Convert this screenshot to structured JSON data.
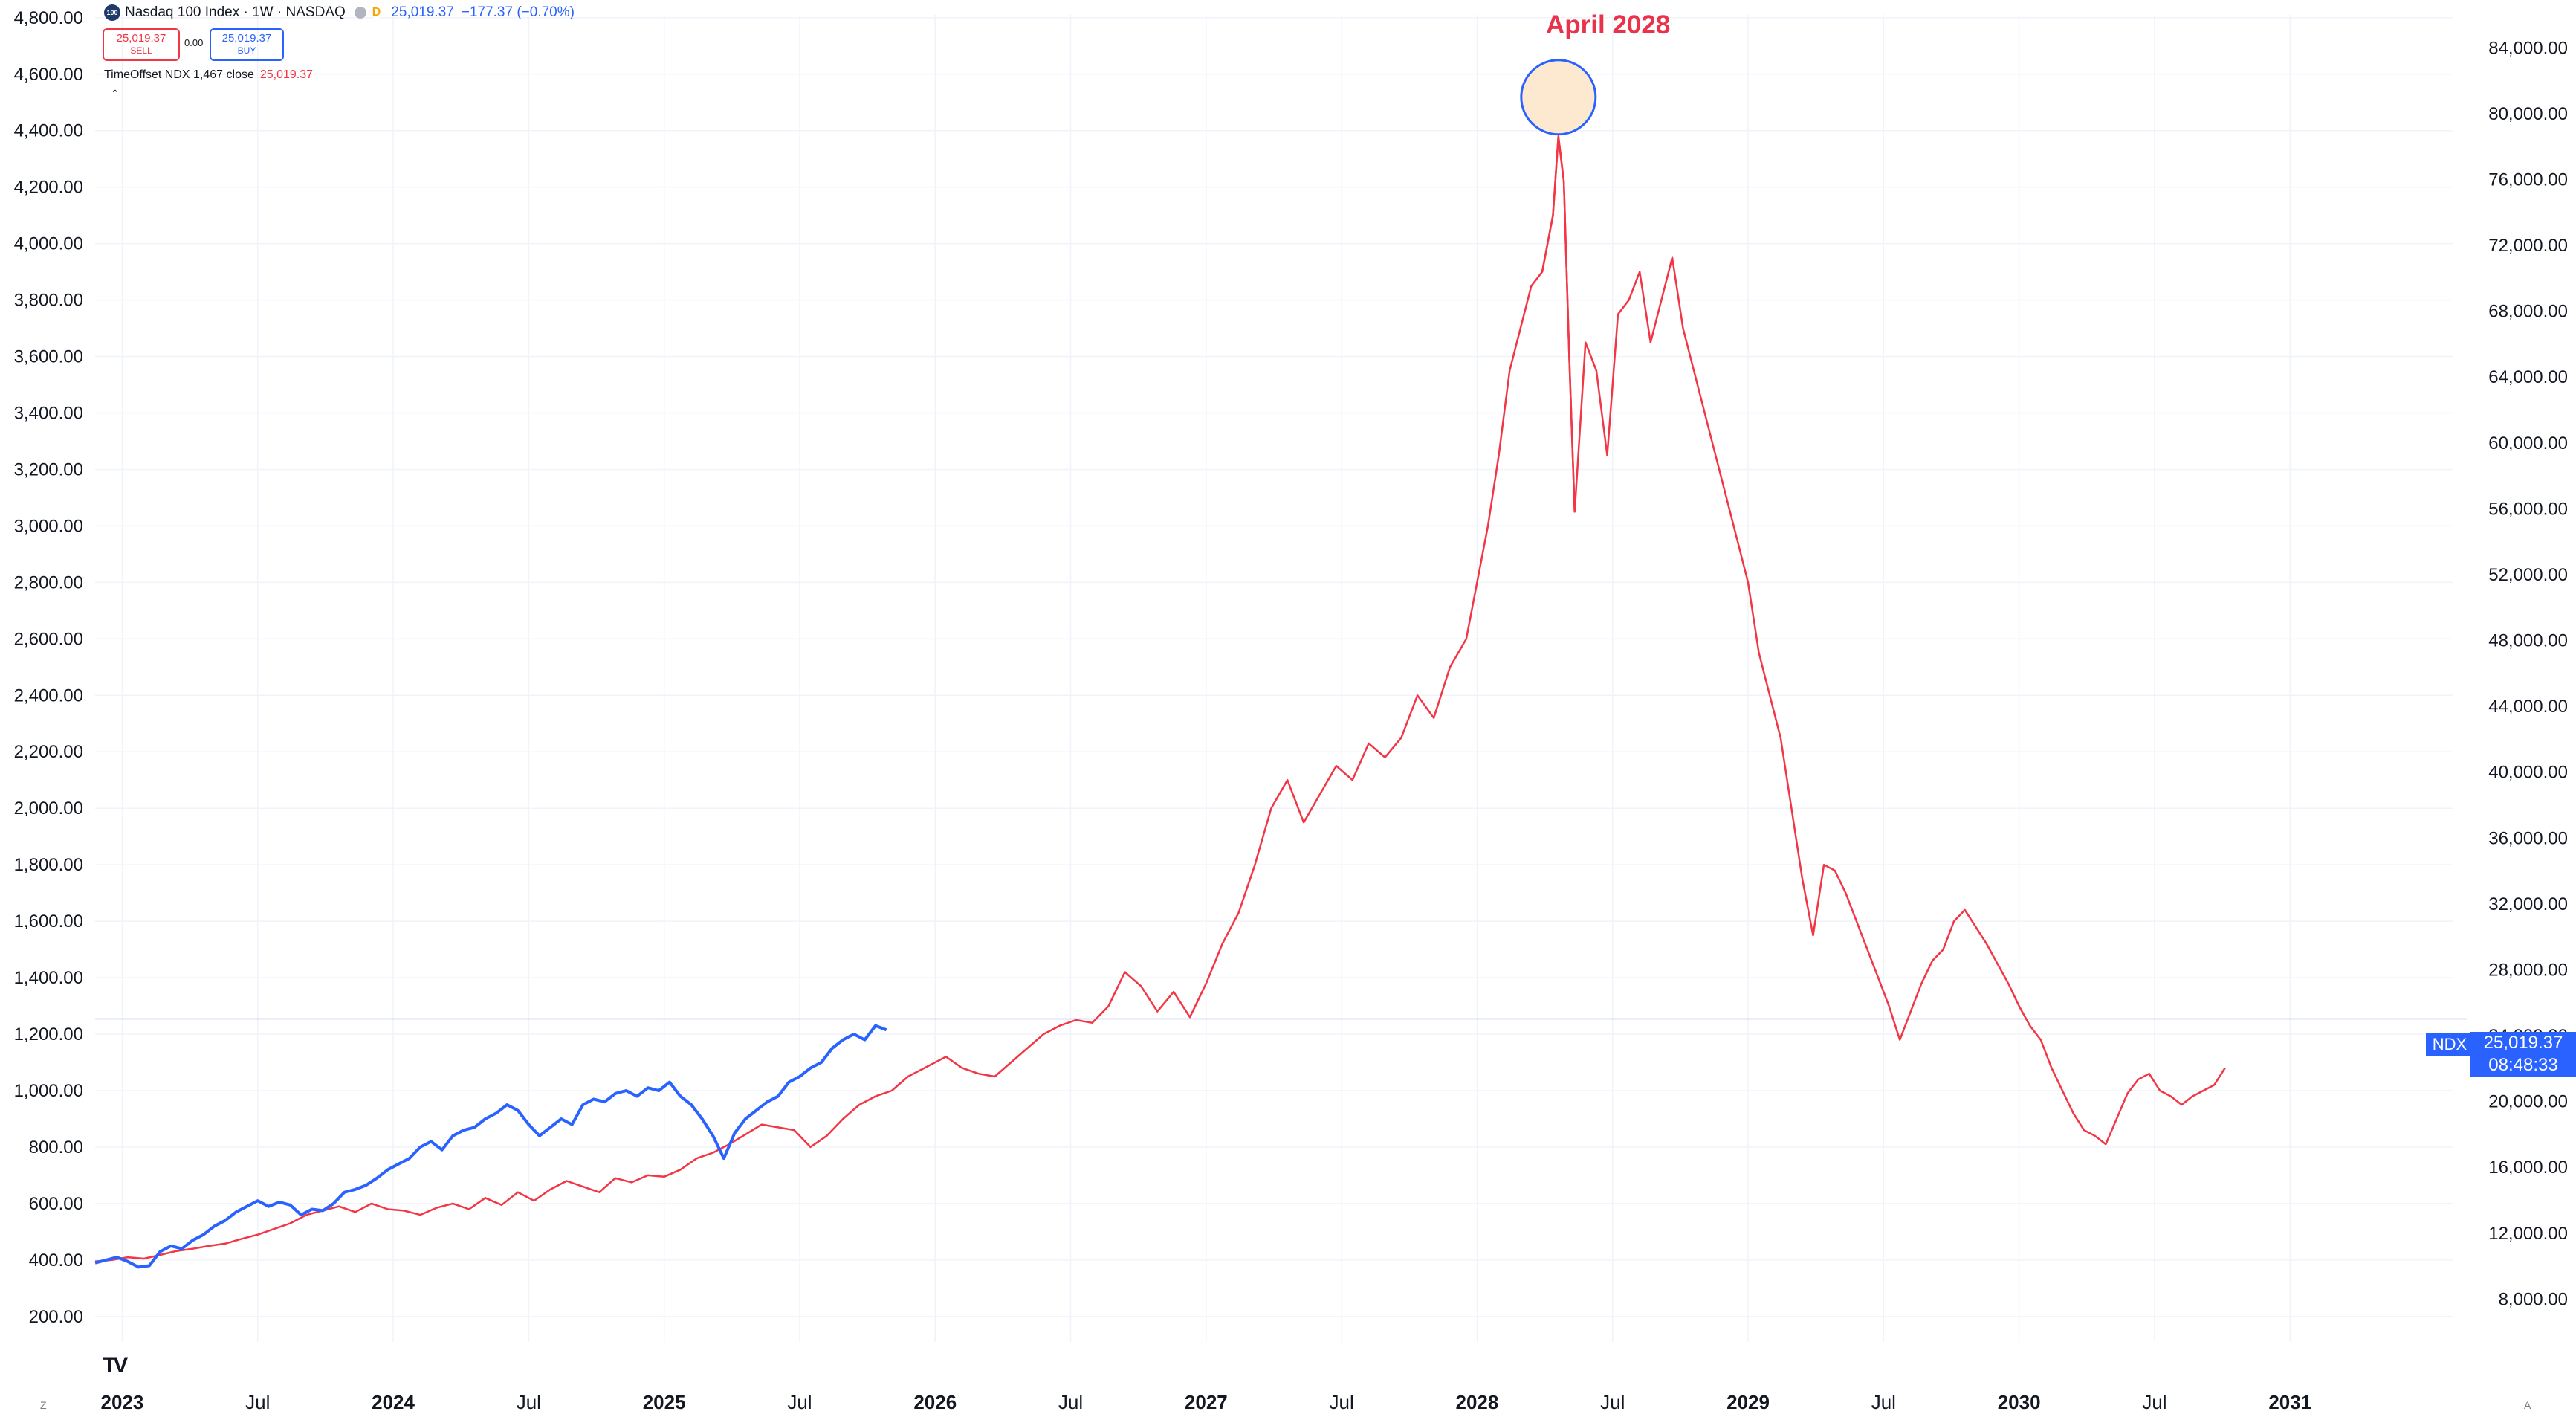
{
  "header": {
    "symbol_title": "Nasdaq 100 Index · 1W · NASDAQ",
    "logo_text": "100",
    "market_state": "D",
    "last_price": "25,019.37",
    "change": "−177.37 (−0.70%)",
    "sell_price": "25,019.37",
    "sell_label": "SELL",
    "spread": "0.00",
    "buy_price": "25,019.37",
    "buy_label": "BUY",
    "study_label": "TimeOffset NDX 1,467 close",
    "study_value": "25,019.37",
    "collapse_glyph": "⌃"
  },
  "annotation": {
    "text": "April 2028"
  },
  "price_tag": {
    "symbol": "NDX",
    "value": "25,019.37",
    "countdown": "08:48:33"
  },
  "corner_labels": {
    "left": "Z",
    "right": "A"
  },
  "tv_logo": "TV",
  "colors": {
    "blue_series": "#2962ff",
    "red_series": "#f23645",
    "annotation": "#e8334a",
    "highlight_fill": "#fde2c4",
    "price_line": "#b2bdf5"
  },
  "chart_data": {
    "type": "line",
    "left_axis": {
      "ticks": [
        "4,800.00",
        "4,600.00",
        "4,400.00",
        "4,200.00",
        "4,000.00",
        "3,800.00",
        "3,600.00",
        "3,400.00",
        "3,200.00",
        "3,000.00",
        "2,800.00",
        "2,600.00",
        "2,400.00",
        "2,200.00",
        "2,000.00",
        "1,800.00",
        "1,600.00",
        "1,400.00",
        "1,200.00",
        "1,000.00",
        "800.00",
        "600.00",
        "400.00",
        "200.00"
      ],
      "tick_values": [
        4800,
        4600,
        4400,
        4200,
        4000,
        3800,
        3600,
        3400,
        3200,
        3000,
        2800,
        2600,
        2400,
        2200,
        2000,
        1800,
        1600,
        1400,
        1200,
        1000,
        800,
        600,
        400,
        200
      ],
      "range": [
        110,
        4810
      ]
    },
    "right_axis": {
      "ticks": [
        "84,000.00",
        "80,000.00",
        "76,000.00",
        "72,000.00",
        "68,000.00",
        "64,000.00",
        "60,000.00",
        "56,000.00",
        "52,000.00",
        "48,000.00",
        "44,000.00",
        "40,000.00",
        "36,000.00",
        "32,000.00",
        "28,000.00",
        "24,000.00",
        "20,000.00",
        "16,000.00",
        "12,000.00",
        "8,000.00"
      ],
      "tick_values": [
        84000,
        80000,
        76000,
        72000,
        68000,
        64000,
        60000,
        56000,
        52000,
        48000,
        44000,
        40000,
        36000,
        32000,
        28000,
        24000,
        20000,
        16000,
        12000,
        8000
      ],
      "range": [
        5400,
        86000
      ]
    },
    "x_axis": {
      "ticks": [
        {
          "label": "2023",
          "t": 2023.0,
          "year": true
        },
        {
          "label": "Jul",
          "t": 2023.5,
          "year": false
        },
        {
          "label": "2024",
          "t": 2024.0,
          "year": true
        },
        {
          "label": "Jul",
          "t": 2024.5,
          "year": false
        },
        {
          "label": "2025",
          "t": 2025.0,
          "year": true
        },
        {
          "label": "Jul",
          "t": 2025.5,
          "year": false
        },
        {
          "label": "2026",
          "t": 2026.0,
          "year": true
        },
        {
          "label": "Jul",
          "t": 2026.5,
          "year": false
        },
        {
          "label": "2027",
          "t": 2027.0,
          "year": true
        },
        {
          "label": "Jul",
          "t": 2027.5,
          "year": false
        },
        {
          "label": "2028",
          "t": 2028.0,
          "year": true
        },
        {
          "label": "Jul",
          "t": 2028.5,
          "year": false
        },
        {
          "label": "2029",
          "t": 2029.0,
          "year": true
        },
        {
          "label": "Jul",
          "t": 2029.5,
          "year": false
        },
        {
          "label": "2030",
          "t": 2030.0,
          "year": true
        },
        {
          "label": "Jul",
          "t": 2030.5,
          "year": false
        },
        {
          "label": "2031",
          "t": 2031.0,
          "year": true
        }
      ],
      "range": [
        2022.9,
        2031.6
      ]
    },
    "current_price_right_axis": 25019.37,
    "highlight_peak": {
      "t": 2028.3,
      "value_right_axis": 81000
    },
    "series": [
      {
        "axis": "left",
        "color": "#f23645",
        "points": [
          [
            2022.9,
            395
          ],
          [
            2022.96,
            400
          ],
          [
            2023.02,
            410
          ],
          [
            2023.08,
            405
          ],
          [
            2023.14,
            418
          ],
          [
            2023.2,
            432
          ],
          [
            2023.26,
            440
          ],
          [
            2023.32,
            450
          ],
          [
            2023.38,
            458
          ],
          [
            2023.44,
            475
          ],
          [
            2023.5,
            490
          ],
          [
            2023.56,
            510
          ],
          [
            2023.62,
            530
          ],
          [
            2023.68,
            560
          ],
          [
            2023.74,
            575
          ],
          [
            2023.8,
            590
          ],
          [
            2023.86,
            570
          ],
          [
            2023.92,
            600
          ],
          [
            2023.98,
            580
          ],
          [
            2024.04,
            575
          ],
          [
            2024.1,
            560
          ],
          [
            2024.16,
            585
          ],
          [
            2024.22,
            600
          ],
          [
            2024.28,
            580
          ],
          [
            2024.34,
            620
          ],
          [
            2024.4,
            595
          ],
          [
            2024.46,
            640
          ],
          [
            2024.52,
            610
          ],
          [
            2024.58,
            650
          ],
          [
            2024.64,
            680
          ],
          [
            2024.7,
            660
          ],
          [
            2024.76,
            640
          ],
          [
            2024.82,
            690
          ],
          [
            2024.88,
            675
          ],
          [
            2024.94,
            700
          ],
          [
            2025.0,
            695
          ],
          [
            2025.06,
            720
          ],
          [
            2025.12,
            760
          ],
          [
            2025.18,
            780
          ],
          [
            2025.24,
            810
          ],
          [
            2025.3,
            845
          ],
          [
            2025.36,
            880
          ],
          [
            2025.42,
            870
          ],
          [
            2025.48,
            860
          ],
          [
            2025.54,
            800
          ],
          [
            2025.6,
            840
          ],
          [
            2025.66,
            900
          ],
          [
            2025.72,
            950
          ],
          [
            2025.78,
            980
          ],
          [
            2025.84,
            1000
          ],
          [
            2025.9,
            1050
          ],
          [
            2025.96,
            1080
          ],
          [
            2026.0,
            1100
          ],
          [
            2026.04,
            1120
          ],
          [
            2026.1,
            1080
          ],
          [
            2026.16,
            1060
          ],
          [
            2026.22,
            1050
          ],
          [
            2026.28,
            1100
          ],
          [
            2026.34,
            1150
          ],
          [
            2026.4,
            1200
          ],
          [
            2026.46,
            1230
          ],
          [
            2026.52,
            1250
          ],
          [
            2026.58,
            1240
          ],
          [
            2026.64,
            1300
          ],
          [
            2026.7,
            1420
          ],
          [
            2026.76,
            1370
          ],
          [
            2026.82,
            1280
          ],
          [
            2026.88,
            1350
          ],
          [
            2026.94,
            1260
          ],
          [
            2027.0,
            1380
          ],
          [
            2027.06,
            1520
          ],
          [
            2027.12,
            1630
          ],
          [
            2027.18,
            1800
          ],
          [
            2027.24,
            2000
          ],
          [
            2027.3,
            2100
          ],
          [
            2027.36,
            1950
          ],
          [
            2027.42,
            2050
          ],
          [
            2027.48,
            2150
          ],
          [
            2027.54,
            2100
          ],
          [
            2027.6,
            2230
          ],
          [
            2027.66,
            2180
          ],
          [
            2027.72,
            2250
          ],
          [
            2027.78,
            2400
          ],
          [
            2027.84,
            2320
          ],
          [
            2027.9,
            2500
          ],
          [
            2027.96,
            2600
          ],
          [
            2028.0,
            2800
          ],
          [
            2028.04,
            3000
          ],
          [
            2028.08,
            3250
          ],
          [
            2028.12,
            3550
          ],
          [
            2028.16,
            3700
          ],
          [
            2028.2,
            3850
          ],
          [
            2028.24,
            3900
          ],
          [
            2028.28,
            4100
          ],
          [
            2028.3,
            4380
          ],
          [
            2028.32,
            4220
          ],
          [
            2028.34,
            3600
          ],
          [
            2028.36,
            3050
          ],
          [
            2028.4,
            3650
          ],
          [
            2028.44,
            3550
          ],
          [
            2028.48,
            3250
          ],
          [
            2028.52,
            3750
          ],
          [
            2028.56,
            3800
          ],
          [
            2028.6,
            3900
          ],
          [
            2028.64,
            3650
          ],
          [
            2028.68,
            3800
          ],
          [
            2028.72,
            3950
          ],
          [
            2028.76,
            3700
          ],
          [
            2028.8,
            3550
          ],
          [
            2028.84,
            3400
          ],
          [
            2028.88,
            3250
          ],
          [
            2028.92,
            3100
          ],
          [
            2028.96,
            2950
          ],
          [
            2029.0,
            2800
          ],
          [
            2029.04,
            2550
          ],
          [
            2029.08,
            2400
          ],
          [
            2029.12,
            2250
          ],
          [
            2029.16,
            2000
          ],
          [
            2029.2,
            1750
          ],
          [
            2029.24,
            1550
          ],
          [
            2029.28,
            1800
          ],
          [
            2029.32,
            1780
          ],
          [
            2029.36,
            1700
          ],
          [
            2029.4,
            1600
          ],
          [
            2029.44,
            1500
          ],
          [
            2029.48,
            1400
          ],
          [
            2029.52,
            1300
          ],
          [
            2029.56,
            1180
          ],
          [
            2029.6,
            1280
          ],
          [
            2029.64,
            1380
          ],
          [
            2029.68,
            1460
          ],
          [
            2029.72,
            1500
          ],
          [
            2029.76,
            1600
          ],
          [
            2029.8,
            1640
          ],
          [
            2029.84,
            1580
          ],
          [
            2029.88,
            1520
          ],
          [
            2029.92,
            1450
          ],
          [
            2029.96,
            1380
          ],
          [
            2030.0,
            1300
          ],
          [
            2030.04,
            1230
          ],
          [
            2030.08,
            1180
          ],
          [
            2030.12,
            1080
          ],
          [
            2030.16,
            1000
          ],
          [
            2030.2,
            920
          ],
          [
            2030.24,
            860
          ],
          [
            2030.28,
            840
          ],
          [
            2030.32,
            810
          ],
          [
            2030.36,
            900
          ],
          [
            2030.4,
            990
          ],
          [
            2030.44,
            1040
          ],
          [
            2030.48,
            1060
          ],
          [
            2030.52,
            1000
          ],
          [
            2030.56,
            980
          ],
          [
            2030.6,
            950
          ],
          [
            2030.64,
            980
          ],
          [
            2030.68,
            1000
          ],
          [
            2030.72,
            1020
          ],
          [
            2030.76,
            1080
          ]
        ]
      },
      {
        "axis": "left",
        "color": "#2962ff",
        "points": [
          [
            2022.9,
            390
          ],
          [
            2022.94,
            400
          ],
          [
            2022.98,
            410
          ],
          [
            2023.02,
            395
          ],
          [
            2023.06,
            375
          ],
          [
            2023.1,
            380
          ],
          [
            2023.14,
            430
          ],
          [
            2023.18,
            450
          ],
          [
            2023.22,
            440
          ],
          [
            2023.26,
            470
          ],
          [
            2023.3,
            490
          ],
          [
            2023.34,
            520
          ],
          [
            2023.38,
            540
          ],
          [
            2023.42,
            570
          ],
          [
            2023.46,
            590
          ],
          [
            2023.5,
            610
          ],
          [
            2023.54,
            590
          ],
          [
            2023.58,
            605
          ],
          [
            2023.62,
            595
          ],
          [
            2023.66,
            560
          ],
          [
            2023.7,
            580
          ],
          [
            2023.74,
            575
          ],
          [
            2023.78,
            600
          ],
          [
            2023.82,
            640
          ],
          [
            2023.86,
            650
          ],
          [
            2023.9,
            665
          ],
          [
            2023.94,
            690
          ],
          [
            2023.98,
            720
          ],
          [
            2024.02,
            740
          ],
          [
            2024.06,
            760
          ],
          [
            2024.1,
            800
          ],
          [
            2024.14,
            820
          ],
          [
            2024.18,
            790
          ],
          [
            2024.22,
            840
          ],
          [
            2024.26,
            860
          ],
          [
            2024.3,
            870
          ],
          [
            2024.34,
            900
          ],
          [
            2024.38,
            920
          ],
          [
            2024.42,
            950
          ],
          [
            2024.46,
            930
          ],
          [
            2024.5,
            880
          ],
          [
            2024.54,
            840
          ],
          [
            2024.58,
            870
          ],
          [
            2024.62,
            900
          ],
          [
            2024.66,
            880
          ],
          [
            2024.7,
            950
          ],
          [
            2024.74,
            970
          ],
          [
            2024.78,
            960
          ],
          [
            2024.82,
            990
          ],
          [
            2024.86,
            1000
          ],
          [
            2024.9,
            980
          ],
          [
            2024.94,
            1010
          ],
          [
            2024.98,
            1000
          ],
          [
            2025.02,
            1030
          ],
          [
            2025.06,
            980
          ],
          [
            2025.1,
            950
          ],
          [
            2025.14,
            900
          ],
          [
            2025.18,
            840
          ],
          [
            2025.22,
            760
          ],
          [
            2025.26,
            850
          ],
          [
            2025.3,
            900
          ],
          [
            2025.34,
            930
          ],
          [
            2025.38,
            960
          ],
          [
            2025.42,
            980
          ],
          [
            2025.46,
            1030
          ],
          [
            2025.5,
            1050
          ],
          [
            2025.54,
            1080
          ],
          [
            2025.58,
            1100
          ],
          [
            2025.62,
            1150
          ],
          [
            2025.66,
            1180
          ],
          [
            2025.7,
            1200
          ],
          [
            2025.74,
            1180
          ],
          [
            2025.78,
            1230
          ],
          [
            2025.82,
            1215
          ]
        ]
      }
    ]
  }
}
